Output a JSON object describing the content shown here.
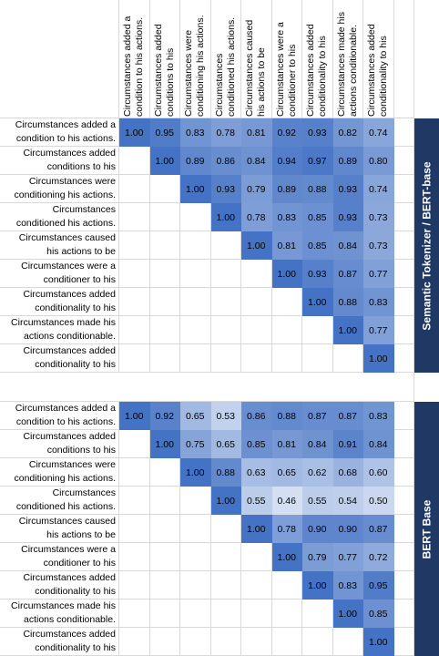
{
  "col_headers": [
    [
      "Circumstances added a",
      "condition to his actions."
    ],
    [
      "Circumstances added",
      "conditions to his"
    ],
    [
      "Circumstances were",
      "conditioning his actions."
    ],
    [
      "Circumstances",
      "conditioned his actions."
    ],
    [
      "Circumstances caused",
      "his actions to be"
    ],
    [
      "Circumstances were a",
      "conditioner to his"
    ],
    [
      "Circumstances added",
      "conditionality to his"
    ],
    [
      "Circumstances made his",
      "actions conditionable."
    ],
    [
      "Circumstances added",
      "conditionality to his"
    ]
  ],
  "row_labels": [
    [
      "Circumstances added a",
      "condition to his actions."
    ],
    [
      "Circumstances added",
      "conditions to his"
    ],
    [
      "Circumstances were",
      "conditioning his actions."
    ],
    [
      "Circumstances",
      "conditioned his actions."
    ],
    [
      "Circumstances caused",
      "his actions to be"
    ],
    [
      "Circumstances were a",
      "conditioner to his"
    ],
    [
      "Circumstances added",
      "conditionality to his"
    ],
    [
      "Circumstances made his",
      "actions conditionable."
    ],
    [
      "Circumstances added",
      "conditionality to his"
    ]
  ],
  "colors": {
    "high": "#4472c4",
    "low": "#ffffff",
    "band": "#1f3864",
    "grid": "#d9d9d9"
  },
  "chart_data": [
    {
      "type": "heatmap",
      "title": "",
      "side_label": "Semantic Tokenizer / BERT-base",
      "values": [
        [
          1.0,
          0.95,
          0.83,
          0.78,
          0.81,
          0.92,
          0.93,
          0.82,
          0.74
        ],
        [
          null,
          1.0,
          0.89,
          0.86,
          0.84,
          0.94,
          0.97,
          0.89,
          0.8
        ],
        [
          null,
          null,
          1.0,
          0.93,
          0.79,
          0.89,
          0.88,
          0.93,
          0.74
        ],
        [
          null,
          null,
          null,
          1.0,
          0.78,
          0.83,
          0.85,
          0.93,
          0.73
        ],
        [
          null,
          null,
          null,
          null,
          1.0,
          0.81,
          0.85,
          0.84,
          0.73
        ],
        [
          null,
          null,
          null,
          null,
          null,
          1.0,
          0.93,
          0.87,
          0.77
        ],
        [
          null,
          null,
          null,
          null,
          null,
          null,
          1.0,
          0.88,
          0.83
        ],
        [
          null,
          null,
          null,
          null,
          null,
          null,
          null,
          1.0,
          0.77
        ],
        [
          null,
          null,
          null,
          null,
          null,
          null,
          null,
          null,
          1.0
        ]
      ],
      "labels": [
        [
          "1.00",
          "0.95",
          "0.83",
          "0.78",
          "0.81",
          "0.92",
          "0.93",
          "0.82",
          "0.74"
        ],
        [
          "",
          "1.00",
          "0.89",
          "0.86",
          "0.84",
          "0.94",
          "0.97",
          "0.89",
          "0.80"
        ],
        [
          "",
          "",
          "1.00",
          "0.93",
          "0.79",
          "0.89",
          "0.88",
          "0.93",
          "0.74"
        ],
        [
          "",
          "",
          "",
          "1.00",
          "0.78",
          "0.83",
          "0.85",
          "0.93",
          "0.73"
        ],
        [
          "",
          "",
          "",
          "",
          "1.00",
          "0.81",
          "0.85",
          "0.84",
          "0.73"
        ],
        [
          "",
          "",
          "",
          "",
          "",
          "1.00",
          "0.93",
          "0.87",
          "0.77"
        ],
        [
          "",
          "",
          "",
          "",
          "",
          "",
          "1.00",
          "0.88",
          "0.83"
        ],
        [
          "",
          "",
          "",
          "",
          "",
          "",
          "",
          "1.00",
          "0.77"
        ],
        [
          "",
          "",
          "",
          "",
          "",
          "",
          "",
          "",
          "1.00"
        ]
      ]
    },
    {
      "type": "heatmap",
      "title": "",
      "side_label": "BERT Base",
      "values": [
        [
          1.0,
          0.92,
          0.65,
          0.53,
          0.86,
          0.88,
          0.87,
          0.87,
          0.83
        ],
        [
          null,
          1.0,
          0.75,
          0.65,
          0.85,
          0.81,
          0.84,
          0.91,
          0.84
        ],
        [
          null,
          null,
          1.0,
          0.88,
          0.63,
          0.65,
          0.62,
          0.68,
          0.6
        ],
        [
          null,
          null,
          null,
          1.0,
          0.55,
          0.46,
          0.55,
          0.54,
          0.5
        ],
        [
          null,
          null,
          null,
          null,
          1.0,
          0.78,
          0.9,
          0.9,
          0.87
        ],
        [
          null,
          null,
          null,
          null,
          null,
          1.0,
          0.79,
          0.77,
          0.72
        ],
        [
          null,
          null,
          null,
          null,
          null,
          null,
          1.0,
          0.83,
          0.95
        ],
        [
          null,
          null,
          null,
          null,
          null,
          null,
          null,
          1.0,
          0.85
        ],
        [
          null,
          null,
          null,
          null,
          null,
          null,
          null,
          null,
          1.0
        ]
      ],
      "labels": [
        [
          "1.00",
          "0.92",
          "0.65",
          "0.53",
          "0.86",
          "0.88",
          "0.87",
          "0.87",
          "0.83"
        ],
        [
          "",
          "1.00",
          "0.75",
          "0.65",
          "0.85",
          "0.81",
          "0.84",
          "0.91",
          "0.84"
        ],
        [
          "",
          "",
          "1.00",
          "0.88",
          "0.63",
          "0.65",
          "0.62",
          "0.68",
          "0.60"
        ],
        [
          "",
          "",
          "",
          "1.00",
          "0.55",
          "0.46",
          "0.55",
          "0.54",
          "0.50"
        ],
        [
          "",
          "",
          "",
          "",
          "1.00",
          "0.78",
          "0.90",
          "0.90",
          "0.87"
        ],
        [
          "",
          "",
          "",
          "",
          "",
          "1.00",
          "0.79",
          "0.77",
          "0.72"
        ],
        [
          "",
          "",
          "",
          "",
          "",
          "",
          "1.00",
          "0.83",
          "0.95"
        ],
        [
          "",
          "",
          "",
          "",
          "",
          "",
          "",
          "1.00",
          "0.85"
        ],
        [
          "",
          "",
          "",
          "",
          "",
          "",
          "",
          "",
          "1.00"
        ]
      ]
    }
  ]
}
